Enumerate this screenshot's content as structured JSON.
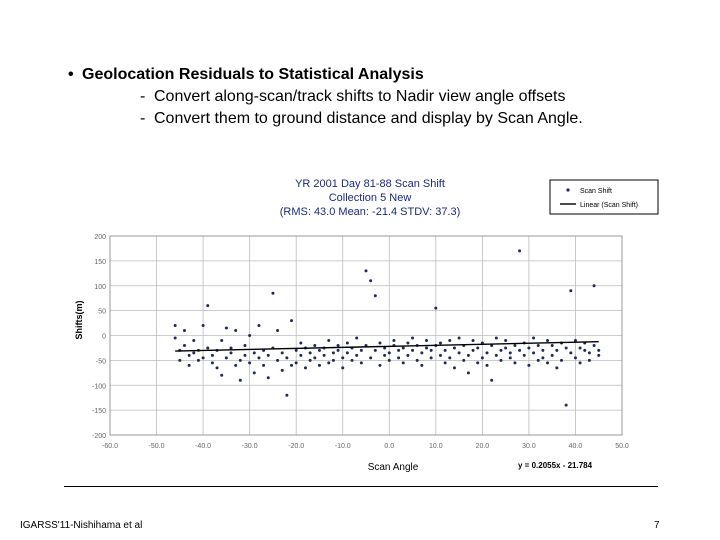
{
  "slide": {
    "bullet": "Geolocation Residuals to Statistical Analysis",
    "subitems": [
      "Convert along-scan/track shifts to Nadir view angle offsets",
      "Convert them to ground distance  and display by Scan Angle."
    ],
    "footer_left": "IGARSS'11-Nishihama et al",
    "page_number": "7"
  },
  "colors": {
    "points": "#1f2a55",
    "trend": "#000000",
    "title": "#1a2a7a",
    "axis_text": "#666666"
  },
  "chart_data": {
    "type": "scatter",
    "title_lines": [
      "YR 2001 Day 81-88 Scan Shift",
      "Collection 5 New",
      "(RMS: 43.0   Mean: -21.4 STDV: 37.3)"
    ],
    "xlabel": "Scan Angle",
    "ylabel": "Shifts(m)",
    "xlim": [
      -60,
      50
    ],
    "ylim": [
      -200,
      200
    ],
    "xticks": [
      -60,
      -50,
      -40,
      -30,
      -20,
      -10,
      0,
      10,
      20,
      30,
      40,
      50
    ],
    "yticks": [
      200,
      150,
      100,
      50,
      0,
      -50,
      -100,
      -150,
      -200
    ],
    "grid": {
      "vertical": true,
      "horizontal": true
    },
    "legend_position": "top-right",
    "legend": [
      "Scan Shift",
      "Linear (Scan Shift)"
    ],
    "equation": "y = 0.2055x - 21.784",
    "trend": {
      "slope": 0.2055,
      "intercept": -21.784,
      "x_range": [
        -46,
        45
      ]
    },
    "points": [
      [
        -46,
        20
      ],
      [
        -46,
        -5
      ],
      [
        -45,
        -30
      ],
      [
        -45,
        -50
      ],
      [
        -44,
        -20
      ],
      [
        -44,
        10
      ],
      [
        -43,
        -40
      ],
      [
        -43,
        -60
      ],
      [
        -42,
        -35
      ],
      [
        -42,
        -10
      ],
      [
        -41,
        -50
      ],
      [
        -41,
        -30
      ],
      [
        -40,
        -45
      ],
      [
        -40,
        20
      ],
      [
        -39,
        60
      ],
      [
        -39,
        -25
      ],
      [
        -38,
        -55
      ],
      [
        -38,
        -40
      ],
      [
        -37,
        -30
      ],
      [
        -37,
        -65
      ],
      [
        -36,
        -10
      ],
      [
        -36,
        -80
      ],
      [
        -35,
        15
      ],
      [
        -35,
        -45
      ],
      [
        -34,
        -35
      ],
      [
        -34,
        -25
      ],
      [
        -33,
        -60
      ],
      [
        -33,
        10
      ],
      [
        -32,
        -50
      ],
      [
        -32,
        -90
      ],
      [
        -31,
        -40
      ],
      [
        -31,
        -20
      ],
      [
        -30,
        -55
      ],
      [
        -30,
        0
      ],
      [
        -29,
        -35
      ],
      [
        -29,
        -75
      ],
      [
        -28,
        -45
      ],
      [
        -28,
        20
      ],
      [
        -27,
        -60
      ],
      [
        -27,
        -30
      ],
      [
        -26,
        -40
      ],
      [
        -26,
        -85
      ],
      [
        -25,
        85
      ],
      [
        -25,
        -25
      ],
      [
        -24,
        -50
      ],
      [
        -24,
        10
      ],
      [
        -23,
        -70
      ],
      [
        -23,
        -35
      ],
      [
        -22,
        -120
      ],
      [
        -22,
        -45
      ],
      [
        -21,
        30
      ],
      [
        -21,
        -60
      ],
      [
        -20,
        -30
      ],
      [
        -20,
        -55
      ],
      [
        -19,
        -40
      ],
      [
        -19,
        -15
      ],
      [
        -18,
        -65
      ],
      [
        -18,
        -25
      ],
      [
        -17,
        -50
      ],
      [
        -17,
        -35
      ],
      [
        -16,
        -20
      ],
      [
        -16,
        -45
      ],
      [
        -15,
        -30
      ],
      [
        -15,
        -60
      ],
      [
        -14,
        -40
      ],
      [
        -14,
        -25
      ],
      [
        -13,
        -55
      ],
      [
        -13,
        -10
      ],
      [
        -12,
        -35
      ],
      [
        -12,
        -50
      ],
      [
        -11,
        -30
      ],
      [
        -11,
        -20
      ],
      [
        -10,
        -45
      ],
      [
        -10,
        -65
      ],
      [
        -9,
        -15
      ],
      [
        -9,
        -35
      ],
      [
        -8,
        -50
      ],
      [
        -8,
        -25
      ],
      [
        -7,
        -40
      ],
      [
        -7,
        -5
      ],
      [
        -6,
        -30
      ],
      [
        -6,
        -55
      ],
      [
        -5,
        130
      ],
      [
        -5,
        -20
      ],
      [
        -4,
        110
      ],
      [
        -4,
        -45
      ],
      [
        -3,
        80
      ],
      [
        -3,
        -30
      ],
      [
        -2,
        -60
      ],
      [
        -2,
        -15
      ],
      [
        -1,
        -40
      ],
      [
        -1,
        -25
      ],
      [
        0,
        -35
      ],
      [
        0,
        -50
      ],
      [
        1,
        -20
      ],
      [
        1,
        -10
      ],
      [
        2,
        -45
      ],
      [
        2,
        -30
      ],
      [
        3,
        -25
      ],
      [
        3,
        -55
      ],
      [
        4,
        -15
      ],
      [
        4,
        -40
      ],
      [
        5,
        -30
      ],
      [
        5,
        -5
      ],
      [
        6,
        -50
      ],
      [
        6,
        -20
      ],
      [
        7,
        -35
      ],
      [
        7,
        -60
      ],
      [
        8,
        -25
      ],
      [
        8,
        -10
      ],
      [
        9,
        -45
      ],
      [
        9,
        -30
      ],
      [
        10,
        55
      ],
      [
        10,
        -20
      ],
      [
        11,
        -40
      ],
      [
        11,
        -15
      ],
      [
        12,
        -55
      ],
      [
        12,
        -30
      ],
      [
        13,
        -10
      ],
      [
        13,
        -45
      ],
      [
        14,
        -25
      ],
      [
        14,
        -65
      ],
      [
        15,
        -35
      ],
      [
        15,
        -5
      ],
      [
        16,
        -50
      ],
      [
        16,
        -20
      ],
      [
        17,
        -40
      ],
      [
        17,
        -75
      ],
      [
        18,
        -30
      ],
      [
        18,
        -10
      ],
      [
        19,
        -55
      ],
      [
        19,
        -25
      ],
      [
        20,
        -45
      ],
      [
        20,
        -15
      ],
      [
        21,
        -35
      ],
      [
        21,
        -60
      ],
      [
        22,
        -20
      ],
      [
        22,
        -90
      ],
      [
        23,
        -40
      ],
      [
        23,
        -5
      ],
      [
        24,
        -30
      ],
      [
        24,
        -50
      ],
      [
        25,
        -25
      ],
      [
        25,
        -10
      ],
      [
        26,
        -45
      ],
      [
        26,
        -35
      ],
      [
        27,
        -20
      ],
      [
        27,
        -55
      ],
      [
        28,
        170
      ],
      [
        28,
        -30
      ],
      [
        29,
        -15
      ],
      [
        29,
        -40
      ],
      [
        30,
        -25
      ],
      [
        30,
        -60
      ],
      [
        31,
        -35
      ],
      [
        31,
        -5
      ],
      [
        32,
        -50
      ],
      [
        32,
        -20
      ],
      [
        33,
        -30
      ],
      [
        33,
        -45
      ],
      [
        34,
        -10
      ],
      [
        34,
        -55
      ],
      [
        35,
        -40
      ],
      [
        35,
        -20
      ],
      [
        36,
        -30
      ],
      [
        36,
        -65
      ],
      [
        37,
        -15
      ],
      [
        37,
        -50
      ],
      [
        38,
        -140
      ],
      [
        38,
        -25
      ],
      [
        39,
        90
      ],
      [
        39,
        -35
      ],
      [
        40,
        -10
      ],
      [
        40,
        -45
      ],
      [
        41,
        -55
      ],
      [
        41,
        -25
      ],
      [
        42,
        -30
      ],
      [
        42,
        -15
      ],
      [
        43,
        -50
      ],
      [
        43,
        -35
      ],
      [
        44,
        100
      ],
      [
        44,
        -20
      ],
      [
        45,
        -40
      ],
      [
        45,
        -30
      ]
    ]
  }
}
